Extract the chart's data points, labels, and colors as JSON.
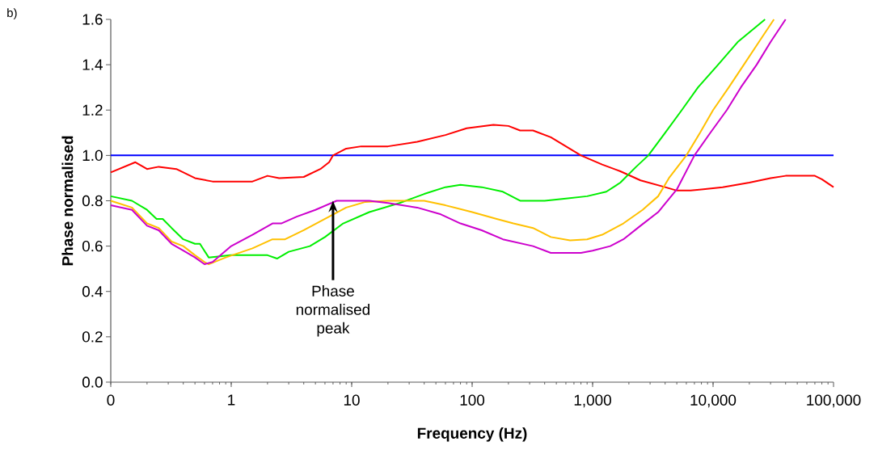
{
  "chart_data": {
    "type": "line",
    "xlabel": "Frequency (Hz)",
    "ylabel": "Phase normalised",
    "log": "x",
    "xlim": [
      0.1,
      100000
    ],
    "ylim": [
      0,
      1.6
    ],
    "xticks": [
      {
        "value": 0.1,
        "label": "0"
      },
      1,
      10,
      100,
      {
        "value": 1000,
        "label": "1,000"
      },
      {
        "value": 10000,
        "label": "10,000"
      },
      {
        "value": 100000,
        "label": "100,000"
      }
    ],
    "yticks": [
      {
        "value": 0,
        "label": "0.0"
      },
      0.2,
      0.4,
      0.6,
      0.8,
      {
        "value": 1,
        "label": "1.0"
      },
      1.2,
      1.4,
      1.6
    ],
    "grid": false,
    "marker": "none",
    "line_style": "solid",
    "series": [
      {
        "color": "#0000ff",
        "x": [
          0.1,
          100000
        ],
        "values": [
          1.0,
          1.0
        ]
      },
      {
        "color": "#ff0000",
        "x": [
          0.1,
          0.16,
          0.2,
          0.25,
          0.35,
          0.5,
          0.7,
          1.5,
          2,
          2.5,
          4,
          5.5,
          6.5,
          7,
          9,
          12,
          20,
          35,
          60,
          90,
          150,
          200,
          250,
          320,
          450,
          600,
          800,
          1200,
          1700,
          2500,
          4000,
          5000,
          6500,
          8000,
          12000,
          20000,
          30000,
          40000,
          70000,
          80000,
          100000
        ],
        "values": [
          0.925,
          0.97,
          0.94,
          0.95,
          0.94,
          0.9,
          0.885,
          0.885,
          0.91,
          0.9,
          0.905,
          0.94,
          0.97,
          1.0,
          1.03,
          1.04,
          1.04,
          1.06,
          1.09,
          1.12,
          1.135,
          1.13,
          1.11,
          1.11,
          1.08,
          1.04,
          1.0,
          0.96,
          0.93,
          0.89,
          0.86,
          0.845,
          0.845,
          0.85,
          0.86,
          0.88,
          0.9,
          0.91,
          0.91,
          0.895,
          0.86
        ]
      },
      {
        "color": "#00ee00",
        "x": [
          0.1,
          0.15,
          0.2,
          0.24,
          0.27,
          0.32,
          0.4,
          0.5,
          0.55,
          0.65,
          1,
          2,
          2.4,
          3,
          4.5,
          6,
          8.5,
          14,
          25,
          40,
          60,
          80,
          120,
          180,
          250,
          400,
          600,
          900,
          1300,
          1700,
          2300,
          2900,
          4000,
          5500,
          7500,
          11000,
          16000,
          27000
        ],
        "values": [
          0.82,
          0.8,
          0.76,
          0.72,
          0.72,
          0.68,
          0.63,
          0.61,
          0.61,
          0.55,
          0.56,
          0.56,
          0.545,
          0.575,
          0.6,
          0.64,
          0.7,
          0.75,
          0.79,
          0.83,
          0.86,
          0.87,
          0.86,
          0.84,
          0.8,
          0.8,
          0.81,
          0.82,
          0.84,
          0.88,
          0.95,
          1.0,
          1.1,
          1.2,
          1.3,
          1.4,
          1.5,
          1.6
        ]
      },
      {
        "color": "#ffc000",
        "x": [
          0.1,
          0.15,
          0.2,
          0.25,
          0.32,
          0.4,
          0.5,
          0.6,
          0.65,
          0.9,
          1.5,
          2.2,
          2.8,
          4,
          6,
          9,
          13,
          20,
          40,
          60,
          100,
          160,
          220,
          320,
          450,
          650,
          900,
          1200,
          1800,
          2600,
          3500,
          4300,
          6000,
          7800,
          10000,
          13500,
          18000,
          24000,
          32000
        ],
        "values": [
          0.8,
          0.77,
          0.7,
          0.68,
          0.62,
          0.6,
          0.56,
          0.53,
          0.52,
          0.55,
          0.59,
          0.63,
          0.63,
          0.67,
          0.72,
          0.77,
          0.795,
          0.8,
          0.8,
          0.78,
          0.75,
          0.72,
          0.7,
          0.68,
          0.64,
          0.625,
          0.63,
          0.65,
          0.7,
          0.76,
          0.82,
          0.9,
          1.0,
          1.1,
          1.2,
          1.3,
          1.4,
          1.5,
          1.6
        ]
      },
      {
        "color": "#cc00cc",
        "x": [
          0.1,
          0.15,
          0.2,
          0.25,
          0.32,
          0.4,
          0.5,
          0.6,
          0.7,
          1,
          1.5,
          2.2,
          2.6,
          3.5,
          5,
          7.5,
          9,
          14,
          20,
          35,
          55,
          80,
          120,
          180,
          320,
          450,
          800,
          1000,
          1400,
          1800,
          2500,
          3500,
          5000,
          7000,
          9500,
          13000,
          17000,
          23000,
          30000,
          40000
        ],
        "values": [
          0.78,
          0.76,
          0.69,
          0.67,
          0.61,
          0.58,
          0.55,
          0.52,
          0.53,
          0.6,
          0.65,
          0.7,
          0.7,
          0.73,
          0.76,
          0.8,
          0.8,
          0.8,
          0.79,
          0.77,
          0.74,
          0.7,
          0.67,
          0.63,
          0.6,
          0.57,
          0.57,
          0.58,
          0.6,
          0.63,
          0.69,
          0.75,
          0.85,
          1.0,
          1.1,
          1.2,
          1.3,
          1.4,
          1.5,
          1.6
        ]
      }
    ],
    "annotations": [
      "b)",
      {
        "text": "Phase normalised peak",
        "x": 7,
        "y": 0.8
      }
    ]
  }
}
